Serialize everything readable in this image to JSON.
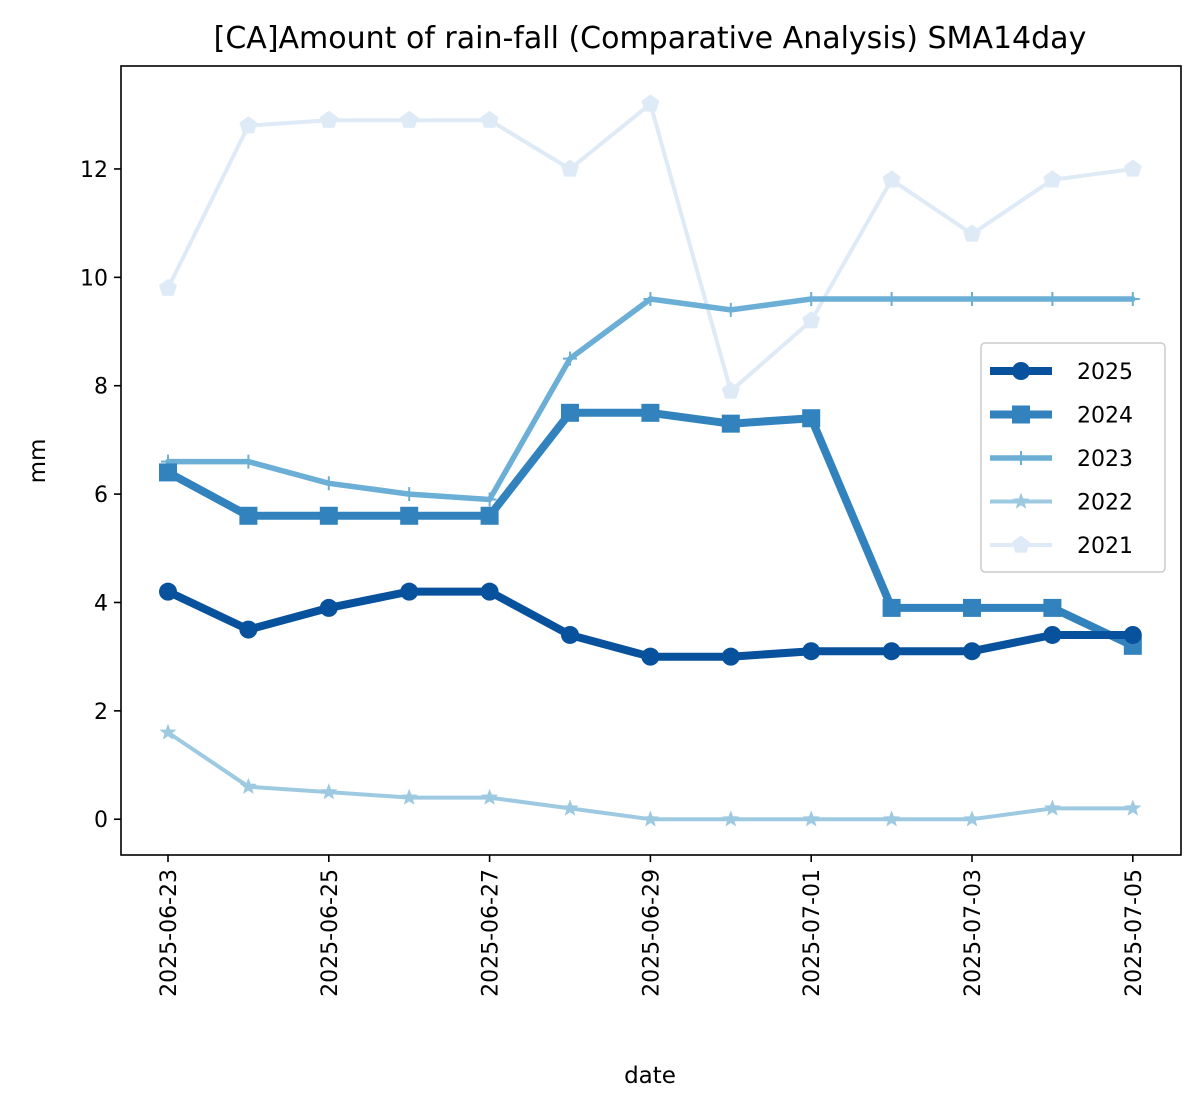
{
  "chart_data": {
    "type": "line",
    "title": "[CA]Amount of rain-fall (Comparative Analysis) SMA14day",
    "xlabel": "date",
    "ylabel": "mm",
    "x": [
      "2025-06-23",
      "2025-06-24",
      "2025-06-25",
      "2025-06-26",
      "2025-06-27",
      "2025-06-28",
      "2025-06-29",
      "2025-06-30",
      "2025-07-01",
      "2025-07-02",
      "2025-07-03",
      "2025-07-04",
      "2025-07-05"
    ],
    "x_ticks": [
      "2025-06-23",
      "2025-06-25",
      "2025-06-27",
      "2025-06-29",
      "2025-07-01",
      "2025-07-03",
      "2025-07-05"
    ],
    "y_ticks": [
      0,
      2,
      4,
      6,
      8,
      10,
      12
    ],
    "ylim": [
      -0.66,
      13.9
    ],
    "grid": false,
    "legend_position": "center-right",
    "series": [
      {
        "name": "2025",
        "color": "#08519c",
        "marker": "circle",
        "line_width": "thick",
        "values": [
          4.2,
          3.5,
          3.9,
          4.2,
          4.2,
          3.4,
          3.0,
          3.0,
          3.1,
          3.1,
          3.1,
          3.4,
          3.4
        ]
      },
      {
        "name": "2024",
        "color": "#3182bd",
        "marker": "square",
        "line_width": "thick",
        "values": [
          6.4,
          5.6,
          5.6,
          5.6,
          5.6,
          7.5,
          7.5,
          7.3,
          7.4,
          3.9,
          3.9,
          3.9,
          3.2
        ]
      },
      {
        "name": "2023",
        "color": "#6baed6",
        "marker": "plus",
        "line_width": "medium",
        "values": [
          6.6,
          6.6,
          6.2,
          6.0,
          5.9,
          8.5,
          9.6,
          9.4,
          9.6,
          9.6,
          9.6,
          9.6,
          9.6
        ]
      },
      {
        "name": "2022",
        "color": "#9ecae1",
        "marker": "star",
        "line_width": "thin",
        "values": [
          1.6,
          0.6,
          0.5,
          0.4,
          0.4,
          0.2,
          0.0,
          0.0,
          0.0,
          0.0,
          0.0,
          0.2,
          0.2
        ]
      },
      {
        "name": "2021",
        "color": "#deebf7",
        "marker": "pentagon",
        "line_width": "thin",
        "values": [
          9.8,
          12.8,
          12.9,
          12.9,
          12.9,
          12.0,
          13.2,
          7.9,
          9.2,
          11.8,
          10.8,
          11.8,
          12.0
        ]
      }
    ]
  }
}
